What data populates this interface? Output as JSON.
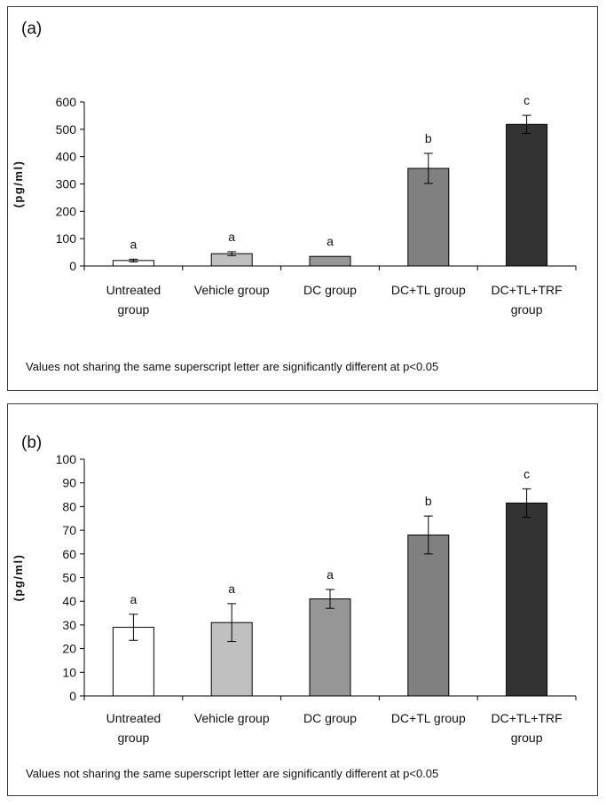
{
  "chart_data": [
    {
      "type": "bar",
      "panel_label": "(a)",
      "ylabel": "(pg/ml)",
      "ylim": [
        0,
        600
      ],
      "yticks": [
        "0",
        "100",
        "200",
        "300",
        "400",
        "500",
        "600"
      ],
      "categories": [
        [
          "Untreated",
          "group"
        ],
        [
          "Vehicle group"
        ],
        [
          "DC group"
        ],
        [
          "DC+TL group"
        ],
        [
          "DC+TL+TRF",
          "group"
        ]
      ],
      "values": [
        20,
        45,
        35,
        357,
        518
      ],
      "errors": [
        5,
        7,
        0,
        55,
        33
      ],
      "significance": [
        "a",
        "a",
        "a",
        "b",
        "c"
      ],
      "bar_colors": [
        "#ffffff",
        "#c0c0c0",
        "#969696",
        "#808080",
        "#333333"
      ],
      "note": "Values not sharing the same superscript letter are significantly different at p<0.05"
    },
    {
      "type": "bar",
      "panel_label": "(b)",
      "ylabel": "(pg/ml)",
      "ylim": [
        0,
        100
      ],
      "yticks": [
        "0",
        "10",
        "20",
        "30",
        "40",
        "50",
        "60",
        "70",
        "80",
        "90",
        "100"
      ],
      "categories": [
        [
          "Untreated",
          "group"
        ],
        [
          "Vehicle group"
        ],
        [
          "DC group"
        ],
        [
          "DC+TL group"
        ],
        [
          "DC+TL+TRF",
          "group"
        ]
      ],
      "values": [
        29,
        31,
        41,
        68,
        81.5
      ],
      "errors": [
        5.5,
        8,
        4,
        8,
        6
      ],
      "significance": [
        "a",
        "a",
        "a",
        "b",
        "c"
      ],
      "bar_colors": [
        "#ffffff",
        "#c0c0c0",
        "#969696",
        "#808080",
        "#333333"
      ],
      "note": "Values not sharing the same superscript letter are significantly different at p<0.05"
    }
  ]
}
